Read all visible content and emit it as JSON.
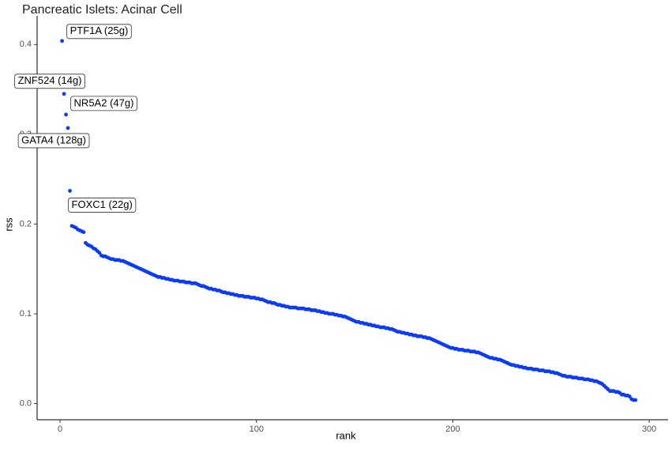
{
  "chart_data": {
    "type": "scatter",
    "title": "Pancreatic Islets: Acinar Cell",
    "x_label": "rank",
    "y_label": "rss",
    "color": "#0b3bf5",
    "labels": [
      "PTF1A (25g)",
      "ZNF524 (14g)",
      "NR5A2 (47g)",
      "GATA4 (128g)",
      "FOXC1 (22g)"
    ],
    "xlim": [
      -11.7,
      309.6
    ],
    "ylim": [
      -0.018,
      0.432
    ],
    "xticks": [
      0,
      100,
      200,
      300
    ],
    "yticks": [
      {
        "value": 0,
        "label": "0.0"
      },
      0.1,
      0.2,
      0.3,
      0.4
    ],
    "x": [
      1,
      2,
      3,
      4,
      5,
      6,
      7,
      8,
      9,
      10,
      11,
      12,
      13,
      14,
      15,
      16,
      17,
      18,
      19,
      20,
      21,
      22,
      23,
      24,
      25,
      26,
      27,
      28,
      29,
      30,
      31,
      32,
      33,
      34,
      35,
      36,
      37,
      38,
      39,
      40,
      41,
      42,
      43,
      44,
      45,
      46,
      47,
      48,
      49,
      50,
      51,
      52,
      53,
      54,
      55,
      56,
      57,
      58,
      59,
      60,
      61,
      62,
      63,
      64,
      65,
      66,
      67,
      68,
      69,
      70,
      71,
      72,
      73,
      74,
      75,
      76,
      77,
      78,
      79,
      80,
      81,
      82,
      83,
      84,
      85,
      86,
      87,
      88,
      89,
      90,
      91,
      92,
      93,
      94,
      95,
      96,
      97,
      98,
      99,
      100,
      101,
      102,
      103,
      104,
      105,
      106,
      107,
      108,
      109,
      110,
      111,
      112,
      113,
      114,
      115,
      116,
      117,
      118,
      119,
      120,
      121,
      122,
      123,
      124,
      125,
      126,
      127,
      128,
      129,
      130,
      131,
      132,
      133,
      134,
      135,
      136,
      137,
      138,
      139,
      140,
      141,
      142,
      143,
      144,
      145,
      146,
      147,
      148,
      149,
      150,
      151,
      152,
      153,
      154,
      155,
      156,
      157,
      158,
      159,
      160,
      161,
      162,
      163,
      164,
      165,
      166,
      167,
      168,
      169,
      170,
      171,
      172,
      173,
      174,
      175,
      176,
      177,
      178,
      179,
      180,
      181,
      182,
      183,
      184,
      185,
      186,
      187,
      188,
      189,
      190,
      191,
      192,
      193,
      194,
      195,
      196,
      197,
      198,
      199,
      200,
      201,
      202,
      203,
      204,
      205,
      206,
      207,
      208,
      209,
      210,
      211,
      212,
      213,
      214,
      215,
      216,
      217,
      218,
      219,
      220,
      221,
      222,
      223,
      224,
      225,
      226,
      227,
      228,
      229,
      230,
      231,
      232,
      233,
      234,
      235,
      236,
      237,
      238,
      239,
      240,
      241,
      242,
      243,
      244,
      245,
      246,
      247,
      248,
      249,
      250,
      251,
      252,
      253,
      254,
      255,
      256,
      257,
      258,
      259,
      260,
      261,
      262,
      263,
      264,
      265,
      266,
      267,
      268,
      269,
      270,
      271,
      272,
      273,
      274,
      275,
      276,
      277,
      278,
      279,
      280,
      281,
      282,
      283,
      284,
      285,
      286,
      287,
      288,
      289,
      290,
      291,
      292,
      293
    ],
    "values": [
      0.404,
      0.345,
      0.322,
      0.307,
      0.237,
      0.198,
      0.197,
      0.196,
      0.194,
      0.193,
      0.192,
      0.191,
      0.179,
      0.177,
      0.176,
      0.175,
      0.173,
      0.172,
      0.17,
      0.168,
      0.165,
      0.164,
      0.164,
      0.163,
      0.162,
      0.161,
      0.161,
      0.16,
      0.16,
      0.16,
      0.159,
      0.159,
      0.158,
      0.157,
      0.156,
      0.155,
      0.154,
      0.153,
      0.152,
      0.151,
      0.15,
      0.149,
      0.148,
      0.147,
      0.146,
      0.145,
      0.144,
      0.143,
      0.142,
      0.141,
      0.141,
      0.14,
      0.14,
      0.139,
      0.139,
      0.138,
      0.138,
      0.137,
      0.137,
      0.137,
      0.136,
      0.136,
      0.136,
      0.135,
      0.135,
      0.135,
      0.134,
      0.134,
      0.134,
      0.133,
      0.132,
      0.131,
      0.131,
      0.13,
      0.129,
      0.128,
      0.128,
      0.127,
      0.127,
      0.126,
      0.126,
      0.125,
      0.124,
      0.124,
      0.123,
      0.123,
      0.122,
      0.122,
      0.121,
      0.121,
      0.12,
      0.12,
      0.12,
      0.119,
      0.119,
      0.119,
      0.118,
      0.118,
      0.118,
      0.117,
      0.117,
      0.116,
      0.116,
      0.115,
      0.114,
      0.113,
      0.113,
      0.112,
      0.112,
      0.111,
      0.11,
      0.11,
      0.109,
      0.109,
      0.108,
      0.108,
      0.107,
      0.107,
      0.107,
      0.107,
      0.106,
      0.106,
      0.106,
      0.106,
      0.105,
      0.105,
      0.105,
      0.104,
      0.104,
      0.104,
      0.103,
      0.103,
      0.102,
      0.102,
      0.101,
      0.101,
      0.1,
      0.1,
      0.1,
      0.099,
      0.099,
      0.098,
      0.098,
      0.097,
      0.097,
      0.096,
      0.095,
      0.094,
      0.093,
      0.092,
      0.091,
      0.091,
      0.09,
      0.09,
      0.089,
      0.089,
      0.088,
      0.088,
      0.087,
      0.087,
      0.086,
      0.086,
      0.085,
      0.085,
      0.085,
      0.084,
      0.084,
      0.083,
      0.083,
      0.082,
      0.081,
      0.08,
      0.08,
      0.079,
      0.079,
      0.078,
      0.078,
      0.077,
      0.077,
      0.076,
      0.076,
      0.075,
      0.075,
      0.075,
      0.074,
      0.074,
      0.073,
      0.073,
      0.072,
      0.071,
      0.07,
      0.069,
      0.068,
      0.067,
      0.066,
      0.065,
      0.064,
      0.063,
      0.062,
      0.062,
      0.061,
      0.061,
      0.06,
      0.06,
      0.06,
      0.059,
      0.059,
      0.059,
      0.058,
      0.058,
      0.058,
      0.057,
      0.057,
      0.056,
      0.055,
      0.054,
      0.053,
      0.052,
      0.051,
      0.051,
      0.05,
      0.05,
      0.049,
      0.049,
      0.048,
      0.047,
      0.046,
      0.045,
      0.044,
      0.043,
      0.043,
      0.042,
      0.042,
      0.041,
      0.041,
      0.04,
      0.04,
      0.039,
      0.039,
      0.039,
      0.038,
      0.038,
      0.038,
      0.037,
      0.037,
      0.037,
      0.036,
      0.036,
      0.036,
      0.035,
      0.035,
      0.034,
      0.034,
      0.033,
      0.032,
      0.031,
      0.031,
      0.03,
      0.03,
      0.03,
      0.029,
      0.029,
      0.029,
      0.028,
      0.028,
      0.028,
      0.027,
      0.027,
      0.027,
      0.026,
      0.026,
      0.025,
      0.025,
      0.024,
      0.023,
      0.022,
      0.02,
      0.018,
      0.016,
      0.014,
      0.014,
      0.014,
      0.013,
      0.013,
      0.012,
      0.01,
      0.01,
      0.009,
      0.009,
      0.008,
      0.005,
      0.004,
      0.004
    ]
  }
}
